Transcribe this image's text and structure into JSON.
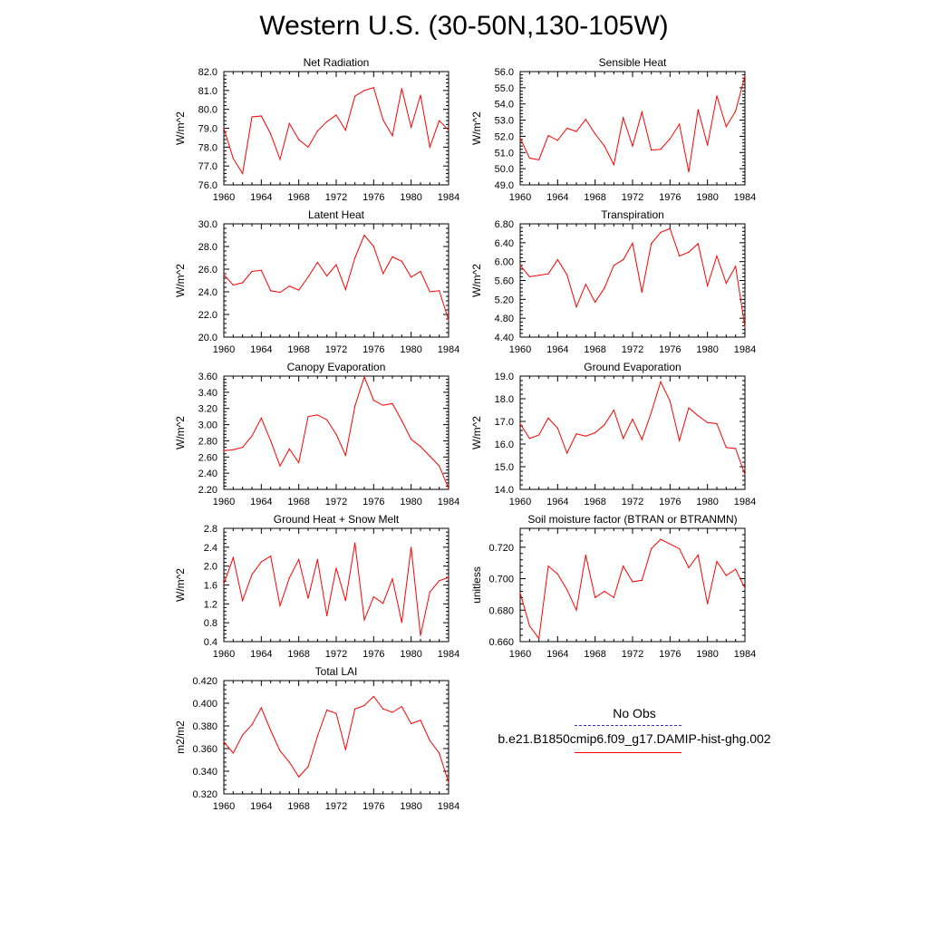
{
  "title": "Western U.S. (30-50N,130-105W)",
  "colors": {
    "model": "#ff0000",
    "obs": "#2b2bd6",
    "axis": "#000000"
  },
  "legend": [
    {
      "label": "No Obs",
      "style": "dashed",
      "color": "#2b2bd6"
    },
    {
      "label": "b.e21.B1850cmip6.f09_g17.DAMIP-hist-ghg.002",
      "style": "solid",
      "color": "#ff0000"
    }
  ],
  "chart_data": [
    {
      "type": "line",
      "title": "Net Radiation",
      "ylabel": "W/m^2",
      "xlim": [
        1960,
        1984
      ],
      "ylim": [
        76.0,
        82.0
      ],
      "xticks": [
        1960,
        1964,
        1968,
        1972,
        1976,
        1980,
        1984
      ],
      "xtick_labels": [
        "1960",
        "1964",
        "1968",
        "1972",
        "1976",
        "1980",
        "1984"
      ],
      "yticks": [
        76,
        77,
        78,
        79,
        80,
        81,
        82
      ],
      "ytick_labels": [
        "76.0",
        "77.0",
        "78.0",
        "79.0",
        "80.0",
        "81.0",
        "82.0"
      ],
      "x": [
        1960,
        1961,
        1962,
        1963,
        1964,
        1965,
        1966,
        1967,
        1968,
        1969,
        1970,
        1971,
        1972,
        1973,
        1974,
        1975,
        1976,
        1977,
        1978,
        1979,
        1980,
        1981,
        1982,
        1983,
        1984
      ],
      "y": [
        79.0,
        77.4,
        76.6,
        79.6,
        79.65,
        78.7,
        77.35,
        79.25,
        78.4,
        78.0,
        78.85,
        79.35,
        79.7,
        78.9,
        80.7,
        81.0,
        81.15,
        79.45,
        78.6,
        81.1,
        79.05,
        80.75,
        78.0,
        79.4,
        78.9
      ]
    },
    {
      "type": "line",
      "title": "Sensible Heat",
      "ylabel": "W/m^2",
      "xlim": [
        1960,
        1984
      ],
      "ylim": [
        49.0,
        56.0
      ],
      "xticks": [
        1960,
        1964,
        1968,
        1972,
        1976,
        1980,
        1984
      ],
      "xtick_labels": [
        "1960",
        "1964",
        "1968",
        "1972",
        "1976",
        "1980",
        "1984"
      ],
      "yticks": [
        49,
        50,
        51,
        52,
        53,
        54,
        55,
        56
      ],
      "ytick_labels": [
        "49.0",
        "50.0",
        "51.0",
        "52.0",
        "53.0",
        "54.0",
        "55.0",
        "56.0"
      ],
      "x": [
        1960,
        1961,
        1962,
        1963,
        1964,
        1965,
        1966,
        1967,
        1968,
        1969,
        1970,
        1971,
        1972,
        1973,
        1974,
        1975,
        1976,
        1977,
        1978,
        1979,
        1980,
        1981,
        1982,
        1983,
        1984
      ],
      "y": [
        51.9,
        50.65,
        50.55,
        52.05,
        51.75,
        52.5,
        52.3,
        53.05,
        52.15,
        51.4,
        50.25,
        53.15,
        51.4,
        53.5,
        51.15,
        51.2,
        51.85,
        52.75,
        49.8,
        53.65,
        51.45,
        54.5,
        52.6,
        53.55,
        55.75
      ]
    },
    {
      "type": "line",
      "title": "Latent Heat",
      "ylabel": "W/m^2",
      "xlim": [
        1960,
        1984
      ],
      "ylim": [
        20.0,
        30.0
      ],
      "xticks": [
        1960,
        1964,
        1968,
        1972,
        1976,
        1980,
        1984
      ],
      "xtick_labels": [
        "1960",
        "1964",
        "1968",
        "1972",
        "1976",
        "1980",
        "1984"
      ],
      "yticks": [
        20,
        22,
        24,
        26,
        28,
        30
      ],
      "ytick_labels": [
        "20.0",
        "22.0",
        "24.0",
        "26.0",
        "28.0",
        "30.0"
      ],
      "x": [
        1960,
        1961,
        1962,
        1963,
        1964,
        1965,
        1966,
        1967,
        1968,
        1969,
        1970,
        1971,
        1972,
        1973,
        1974,
        1975,
        1976,
        1977,
        1978,
        1979,
        1980,
        1981,
        1982,
        1983,
        1984
      ],
      "y": [
        25.5,
        24.6,
        24.8,
        25.8,
        25.9,
        24.1,
        23.95,
        24.5,
        24.15,
        25.3,
        26.6,
        25.4,
        26.4,
        24.2,
        27.0,
        29.0,
        28.0,
        25.6,
        27.1,
        26.7,
        25.3,
        25.8,
        24.0,
        24.1,
        21.5
      ]
    },
    {
      "type": "line",
      "title": "Transpiration",
      "ylabel": "W/m^2",
      "xlim": [
        1960,
        1984
      ],
      "ylim": [
        4.4,
        6.8
      ],
      "xticks": [
        1960,
        1964,
        1968,
        1972,
        1976,
        1980,
        1984
      ],
      "xtick_labels": [
        "1960",
        "1964",
        "1968",
        "1972",
        "1976",
        "1980",
        "1984"
      ],
      "yticks": [
        4.4,
        4.8,
        5.2,
        5.6,
        6.0,
        6.4,
        6.8
      ],
      "ytick_labels": [
        "4.40",
        "4.80",
        "5.20",
        "5.60",
        "6.00",
        "6.40",
        "6.80"
      ],
      "x": [
        1960,
        1961,
        1962,
        1963,
        1964,
        1965,
        1966,
        1967,
        1968,
        1969,
        1970,
        1971,
        1972,
        1973,
        1974,
        1975,
        1976,
        1977,
        1978,
        1979,
        1980,
        1981,
        1982,
        1983,
        1984
      ],
      "y": [
        5.92,
        5.68,
        5.71,
        5.74,
        6.04,
        5.72,
        5.04,
        5.52,
        5.14,
        5.44,
        5.92,
        6.04,
        6.39,
        5.35,
        6.38,
        6.62,
        6.7,
        6.12,
        6.2,
        6.38,
        5.49,
        6.12,
        5.54,
        5.9,
        4.61
      ]
    },
    {
      "type": "line",
      "title": "Canopy Evaporation",
      "ylabel": "W/m^2",
      "xlim": [
        1960,
        1984
      ],
      "ylim": [
        2.2,
        3.6
      ],
      "xticks": [
        1960,
        1964,
        1968,
        1972,
        1976,
        1980,
        1984
      ],
      "xtick_labels": [
        "1960",
        "1964",
        "1968",
        "1972",
        "1976",
        "1980",
        "1984"
      ],
      "yticks": [
        2.2,
        2.4,
        2.6,
        2.8,
        3.0,
        3.2,
        3.4,
        3.6
      ],
      "ytick_labels": [
        "2.20",
        "2.40",
        "2.60",
        "2.80",
        "3.00",
        "3.20",
        "3.40",
        "3.60"
      ],
      "x": [
        1960,
        1961,
        1962,
        1963,
        1964,
        1965,
        1966,
        1967,
        1968,
        1969,
        1970,
        1971,
        1972,
        1973,
        1974,
        1975,
        1976,
        1977,
        1978,
        1979,
        1980,
        1981,
        1982,
        1983,
        1984
      ],
      "y": [
        2.68,
        2.69,
        2.72,
        2.86,
        3.08,
        2.8,
        2.49,
        2.7,
        2.53,
        3.1,
        3.12,
        3.06,
        2.88,
        2.62,
        3.23,
        3.59,
        3.3,
        3.24,
        3.26,
        3.05,
        2.82,
        2.73,
        2.61,
        2.49,
        2.21
      ]
    },
    {
      "type": "line",
      "title": "Ground Evaporation",
      "ylabel": "W/m^2",
      "xlim": [
        1960,
        1984
      ],
      "ylim": [
        14.0,
        19.0
      ],
      "xticks": [
        1960,
        1964,
        1968,
        1972,
        1976,
        1980,
        1984
      ],
      "xtick_labels": [
        "1960",
        "1964",
        "1968",
        "1972",
        "1976",
        "1980",
        "1984"
      ],
      "yticks": [
        14,
        15,
        16,
        17,
        18,
        19
      ],
      "ytick_labels": [
        "14.0",
        "15.0",
        "16.0",
        "17.0",
        "18.0",
        "19.0"
      ],
      "x": [
        1960,
        1961,
        1962,
        1963,
        1964,
        1965,
        1966,
        1967,
        1968,
        1969,
        1970,
        1971,
        1972,
        1973,
        1974,
        1975,
        1976,
        1977,
        1978,
        1979,
        1980,
        1981,
        1982,
        1983,
        1984
      ],
      "y": [
        16.9,
        16.25,
        16.4,
        17.15,
        16.7,
        15.6,
        16.45,
        16.35,
        16.5,
        16.85,
        17.5,
        16.25,
        17.1,
        16.2,
        17.4,
        18.75,
        17.9,
        16.15,
        17.6,
        17.25,
        16.95,
        16.9,
        15.85,
        15.8,
        14.65
      ]
    },
    {
      "type": "line",
      "title": "Ground Heat + Snow Melt",
      "ylabel": "W/m^2",
      "xlim": [
        1960,
        1984
      ],
      "ylim": [
        0.4,
        2.8
      ],
      "xticks": [
        1960,
        1964,
        1968,
        1972,
        1976,
        1980,
        1984
      ],
      "xtick_labels": [
        "1960",
        "1964",
        "1968",
        "1972",
        "1976",
        "1980",
        "1984"
      ],
      "yticks": [
        0.4,
        0.8,
        1.2,
        1.6,
        2.0,
        2.4,
        2.8
      ],
      "ytick_labels": [
        "0.4",
        "0.8",
        "1.2",
        "1.6",
        "2.0",
        "2.4",
        "2.8"
      ],
      "x": [
        1960,
        1961,
        1962,
        1963,
        1964,
        1965,
        1966,
        1967,
        1968,
        1969,
        1970,
        1971,
        1972,
        1973,
        1974,
        1975,
        1976,
        1977,
        1978,
        1979,
        1980,
        1981,
        1982,
        1983,
        1984
      ],
      "y": [
        1.62,
        2.18,
        1.27,
        1.82,
        2.09,
        2.21,
        1.16,
        1.75,
        2.14,
        1.32,
        2.14,
        0.95,
        1.96,
        1.27,
        2.49,
        0.86,
        1.35,
        1.21,
        1.73,
        0.81,
        2.4,
        0.53,
        1.45,
        1.69,
        1.76
      ]
    },
    {
      "type": "line",
      "title": "Soil moisture factor (BTRAN or BTRANMN)",
      "ylabel": "unitless",
      "xlim": [
        1960,
        1984
      ],
      "ylim": [
        0.66,
        0.732
      ],
      "xticks": [
        1960,
        1964,
        1968,
        1972,
        1976,
        1980,
        1984
      ],
      "xtick_labels": [
        "1960",
        "1964",
        "1968",
        "1972",
        "1976",
        "1980",
        "1984"
      ],
      "yticks": [
        0.66,
        0.68,
        0.7,
        0.72
      ],
      "ytick_labels": [
        "0.660",
        "0.680",
        "0.700",
        "0.720"
      ],
      "x": [
        1960,
        1961,
        1962,
        1963,
        1964,
        1965,
        1966,
        1967,
        1968,
        1969,
        1970,
        1971,
        1972,
        1973,
        1974,
        1975,
        1976,
        1977,
        1978,
        1979,
        1980,
        1981,
        1982,
        1983,
        1984
      ],
      "y": [
        0.691,
        0.67,
        0.662,
        0.708,
        0.703,
        0.693,
        0.68,
        0.715,
        0.688,
        0.692,
        0.688,
        0.708,
        0.698,
        0.699,
        0.719,
        0.725,
        0.722,
        0.719,
        0.707,
        0.715,
        0.684,
        0.711,
        0.702,
        0.706,
        0.694
      ]
    },
    {
      "type": "line",
      "title": "Total LAI",
      "ylabel": "m2/m2",
      "xlim": [
        1960,
        1984
      ],
      "ylim": [
        0.32,
        0.42
      ],
      "xticks": [
        1960,
        1964,
        1968,
        1972,
        1976,
        1980,
        1984
      ],
      "xtick_labels": [
        "1960",
        "1964",
        "1968",
        "1972",
        "1976",
        "1980",
        "1984"
      ],
      "yticks": [
        0.32,
        0.34,
        0.36,
        0.38,
        0.4,
        0.42
      ],
      "ytick_labels": [
        "0.320",
        "0.340",
        "0.360",
        "0.380",
        "0.400",
        "0.420"
      ],
      "x": [
        1960,
        1961,
        1962,
        1963,
        1964,
        1965,
        1966,
        1967,
        1968,
        1969,
        1970,
        1971,
        1972,
        1973,
        1974,
        1975,
        1976,
        1977,
        1978,
        1979,
        1980,
        1981,
        1982,
        1983,
        1984
      ],
      "y": [
        0.366,
        0.356,
        0.372,
        0.381,
        0.396,
        0.376,
        0.358,
        0.348,
        0.335,
        0.344,
        0.371,
        0.394,
        0.391,
        0.359,
        0.395,
        0.398,
        0.406,
        0.395,
        0.392,
        0.397,
        0.382,
        0.385,
        0.367,
        0.356,
        0.33
      ]
    }
  ]
}
